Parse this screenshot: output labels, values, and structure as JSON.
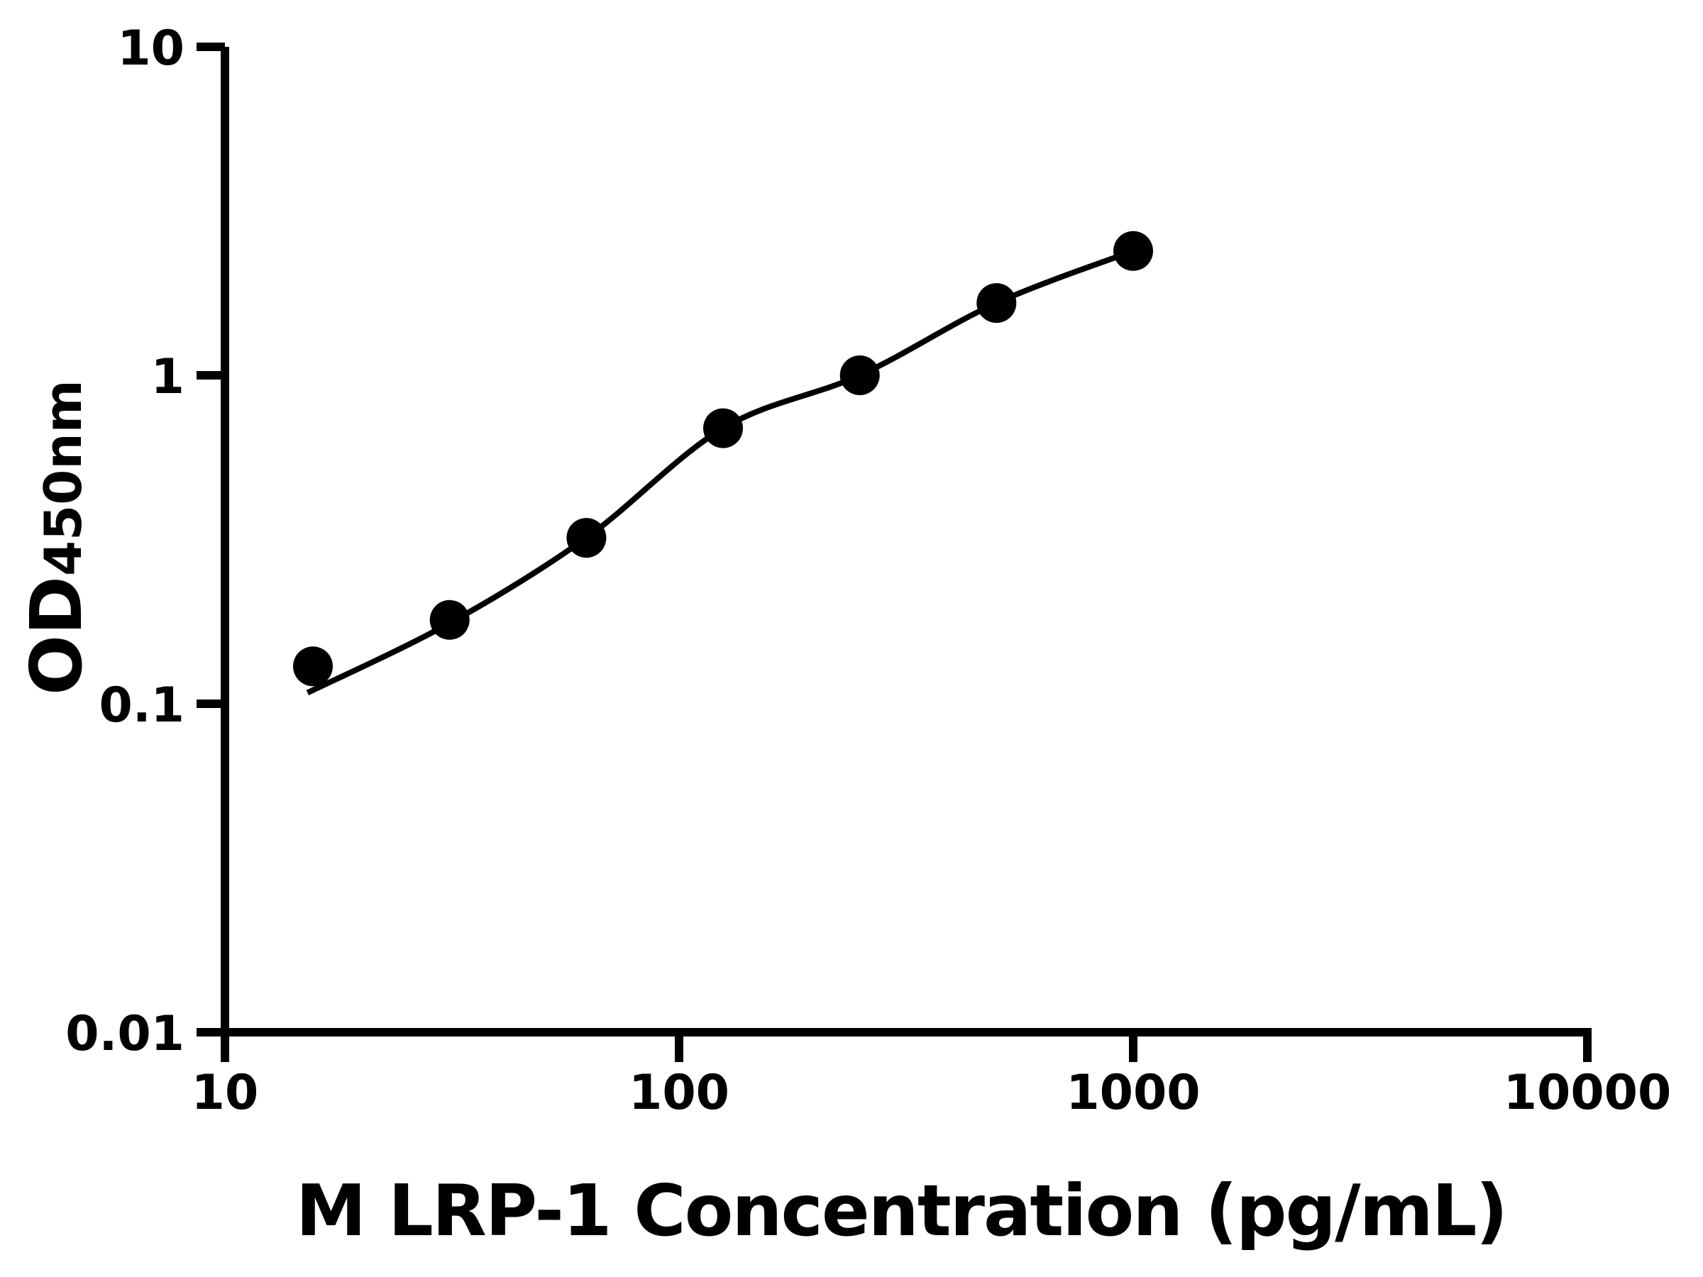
{
  "figure": {
    "background_color": "#ffffff",
    "ink_color": "#000000"
  },
  "chart_data": {
    "type": "scatter",
    "title": "",
    "xlabel": "M LRP-1 Concentration (pg/mL)",
    "ylabel": "OD",
    "ylabel_subscript": "450nm",
    "x_scale": "log",
    "y_scale": "log",
    "xlim": [
      10,
      10000
    ],
    "ylim": [
      0.01,
      10
    ],
    "grid": false,
    "legend": false,
    "x_ticks": [
      {
        "value": 10,
        "label": "10"
      },
      {
        "value": 100,
        "label": "100"
      },
      {
        "value": 1000,
        "label": "1000"
      },
      {
        "value": 10000,
        "label": "10000"
      }
    ],
    "y_ticks": [
      {
        "value": 10,
        "label": "10"
      },
      {
        "value": 1,
        "label": "1"
      },
      {
        "value": 0.1,
        "label": "0.1"
      },
      {
        "value": 0.01,
        "label": "0.01"
      }
    ],
    "series": [
      {
        "name": "standard-curve-points",
        "marker": "filled-circle",
        "color": "#000000",
        "x": [
          15.625,
          31.25,
          62.5,
          125,
          250,
          500,
          1000
        ],
        "y": [
          0.13,
          0.18,
          0.32,
          0.69,
          1.0,
          1.66,
          2.39
        ]
      }
    ],
    "fit_line": {
      "name": "4PL-fit-curve",
      "color": "#000000",
      "x": [
        15.2,
        31.25,
        62.5,
        125,
        250,
        500,
        1000
      ],
      "y": [
        0.108,
        0.176,
        0.32,
        0.69,
        1.0,
        1.66,
        2.39
      ]
    }
  }
}
